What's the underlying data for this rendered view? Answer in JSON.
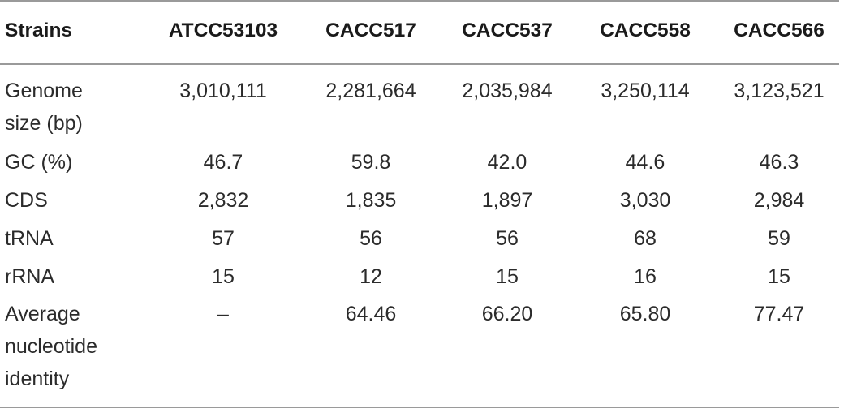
{
  "table": {
    "headers": [
      "Strains",
      "ATCC53103",
      "CACC517",
      "CACC537",
      "CACC558",
      "CACC566"
    ],
    "rows": [
      {
        "label_lines": [
          "Genome",
          "size (bp)"
        ],
        "values": [
          "3,010,111",
          "2,281,664",
          "2,035,984",
          "3,250,114",
          "3,123,521"
        ]
      },
      {
        "label_lines": [
          "GC (%)"
        ],
        "values": [
          "46.7",
          "59.8",
          "42.0",
          "44.6",
          "46.3"
        ]
      },
      {
        "label_lines": [
          "CDS"
        ],
        "values": [
          "2,832",
          "1,835",
          "1,897",
          "3,030",
          "2,984"
        ]
      },
      {
        "label_lines": [
          "tRNA"
        ],
        "values": [
          "57",
          "56",
          "56",
          "68",
          "59"
        ]
      },
      {
        "label_lines": [
          "rRNA"
        ],
        "values": [
          "15",
          "12",
          "15",
          "16",
          "15"
        ]
      },
      {
        "label_lines": [
          "Average",
          "nucleotide",
          "identity"
        ],
        "values": [
          "–",
          "64.46",
          "66.20",
          "65.80",
          "77.47"
        ]
      }
    ]
  }
}
